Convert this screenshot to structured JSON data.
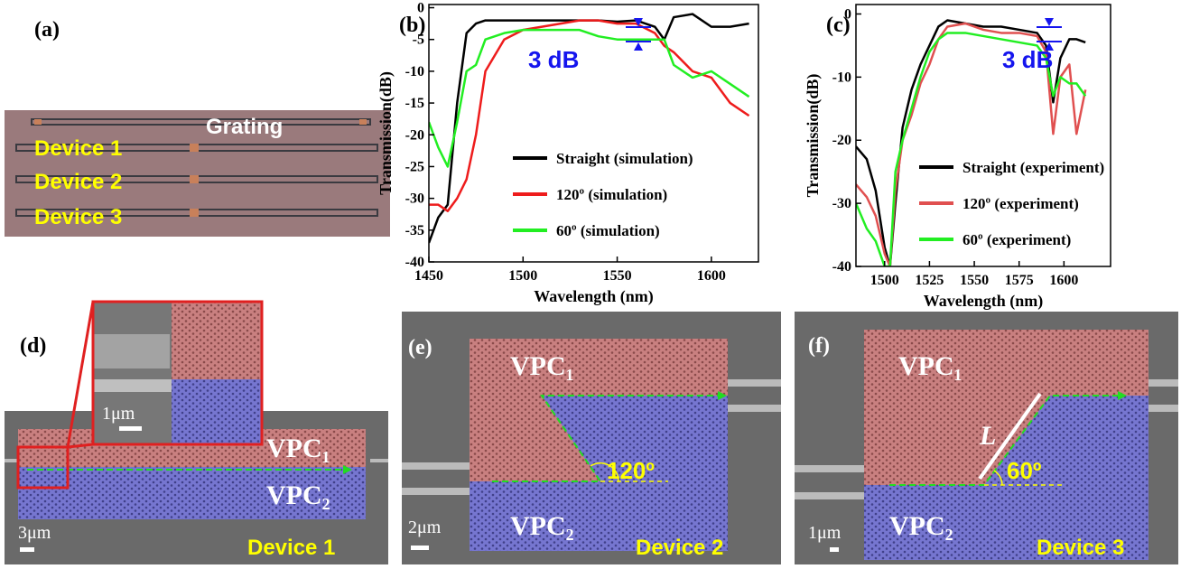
{
  "chart_data": [
    {
      "type": "line",
      "label": "(b)",
      "xlabel": "Wavelength (nm)",
      "ylabel": "Transmission(dB)",
      "annotation": "3 dB",
      "x": [
        1450,
        1455,
        1460,
        1465,
        1470,
        1475,
        1480,
        1490,
        1500,
        1510,
        1520,
        1530,
        1540,
        1550,
        1560,
        1570,
        1575,
        1580,
        1590,
        1600,
        1610,
        1620
      ],
      "series": [
        {
          "name": "Straight (simulation)",
          "color": "#000000",
          "values": [
            -37,
            -33,
            -31,
            -15,
            -4,
            -2.5,
            -2,
            -2,
            -2,
            -2,
            -2,
            -2,
            -2,
            -2.2,
            -2,
            -3,
            -5,
            -1.5,
            -1,
            -3,
            -3,
            -2.5
          ]
        },
        {
          "name": "120º (simulation)",
          "color": "#ee1c1c",
          "values": [
            -31,
            -31,
            -32,
            -30,
            -27,
            -20,
            -10,
            -5,
            -3.5,
            -3,
            -2.5,
            -2,
            -2,
            -2.5,
            -2.5,
            -4,
            -6,
            -7,
            -10,
            -11,
            -15,
            -17
          ]
        },
        {
          "name": "60º (simulation)",
          "color": "#22ee22",
          "values": [
            -18,
            -22,
            -25,
            -18,
            -10,
            -9,
            -5,
            -4,
            -3.5,
            -3.5,
            -3.5,
            -3.5,
            -4.5,
            -5,
            -5,
            -5,
            -5,
            -9,
            -11,
            -10,
            -12,
            -14
          ]
        }
      ],
      "xlim": [
        1450,
        1625
      ],
      "ylim": [
        -40,
        0.5
      ],
      "xticks": [
        1450,
        1500,
        1550,
        1600
      ],
      "yticks": [
        -40,
        -35,
        -30,
        -25,
        -20,
        -15,
        -10,
        -5,
        0
      ],
      "legend": "lower right"
    },
    {
      "type": "line",
      "label": "(c)",
      "xlabel": "Wavelength (nm)",
      "ylabel": "Transmission(dB)",
      "annotation": "3 dB",
      "x": [
        1484,
        1490,
        1495,
        1500,
        1503,
        1506,
        1510,
        1515,
        1520,
        1525,
        1530,
        1535,
        1545,
        1555,
        1565,
        1575,
        1585,
        1590,
        1594,
        1598,
        1603,
        1607,
        1612
      ],
      "series": [
        {
          "name": "Straight (experiment)",
          "color": "#000000",
          "values": [
            -21,
            -23,
            -28,
            -37,
            -40,
            -30,
            -18,
            -12,
            -8,
            -5,
            -2,
            -1,
            -1.5,
            -2,
            -2,
            -2.5,
            -3,
            -5,
            -14,
            -7,
            -4,
            -4,
            -4.5
          ]
        },
        {
          "name": "120º (experiment)",
          "color": "#e05050",
          "values": [
            -27,
            -29,
            -32,
            -38,
            -40,
            -28,
            -20,
            -16,
            -11,
            -8,
            -4,
            -2,
            -1.5,
            -2.5,
            -3,
            -3,
            -3.5,
            -6,
            -19,
            -10,
            -8,
            -19,
            -12
          ]
        },
        {
          "name": "60º (experiment)",
          "color": "#22ee22",
          "values": [
            -30,
            -34,
            -36,
            -40,
            -40,
            -25,
            -20,
            -15,
            -10,
            -6,
            -4,
            -3,
            -3,
            -3.5,
            -4,
            -4.5,
            -5,
            -7,
            -13,
            -10,
            -11,
            -11,
            -13
          ]
        }
      ],
      "xlim": [
        1484,
        1626
      ],
      "ylim": [
        -40,
        1.5
      ],
      "xticks": [
        1500,
        1525,
        1550,
        1575,
        1600
      ],
      "yticks": [
        -40,
        -30,
        -20,
        -10,
        0
      ],
      "legend": "lower right"
    }
  ],
  "panels": {
    "a": {
      "label": "(a)",
      "grating": "Grating",
      "devices": [
        "Device 1",
        "Device 2",
        "Device 3"
      ]
    },
    "d": {
      "label": "(d)",
      "inset_scale": "1μm",
      "scale": "3μm",
      "regions": [
        "VPC₁",
        "VPC₂"
      ],
      "device": "Device 1"
    },
    "e": {
      "label": "(e)",
      "regions": [
        "VPC₁",
        "VPC₂"
      ],
      "angle": "120º",
      "scale": "2μm",
      "device": "Device 2"
    },
    "f": {
      "label": "(f)",
      "regions": [
        "VPC₁",
        "VPC₂"
      ],
      "length": "L",
      "angle": "60º",
      "scale": "1μm",
      "device": "Device 3"
    }
  }
}
